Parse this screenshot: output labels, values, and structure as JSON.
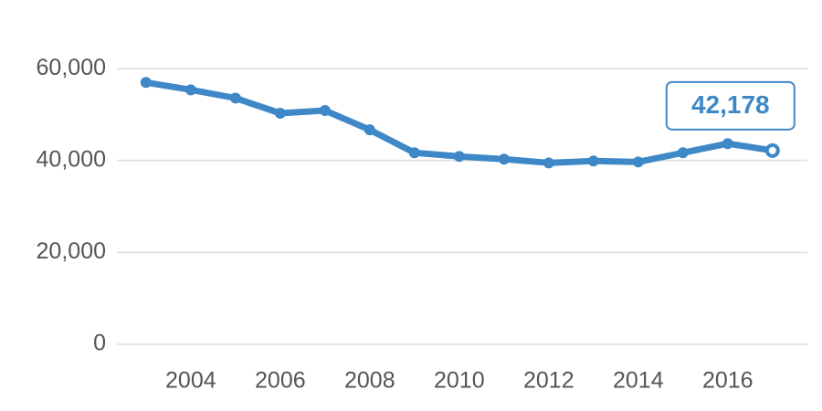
{
  "chart_data": {
    "type": "line",
    "x": [
      2003,
      2004,
      2005,
      2006,
      2007,
      2008,
      2009,
      2010,
      2011,
      2012,
      2013,
      2014,
      2015,
      2016,
      2017
    ],
    "series": [
      {
        "color": "#3f88c8",
        "values": [
          57000,
          55400,
          53600,
          50300,
          50900,
          46700,
          41700,
          40900,
          40300,
          39500,
          39900,
          39700,
          41700,
          43700,
          42178
        ],
        "value_labels": [
          null,
          null,
          null,
          null,
          null,
          null,
          null,
          null,
          null,
          null,
          null,
          null,
          null,
          null,
          "42,178"
        ]
      }
    ],
    "xlim": [
      2002.35,
      2017.78
    ],
    "xticks": [
      2004,
      2006,
      2008,
      2010,
      2012,
      2014,
      2016
    ],
    "ylim": [
      0,
      67000
    ],
    "yticks": [
      0,
      {
        "value": 20000,
        "label": "20,000"
      },
      {
        "value": 40000,
        "label": "40,000"
      },
      {
        "value": 60000,
        "label": "60,000"
      }
    ],
    "grid": true
  }
}
